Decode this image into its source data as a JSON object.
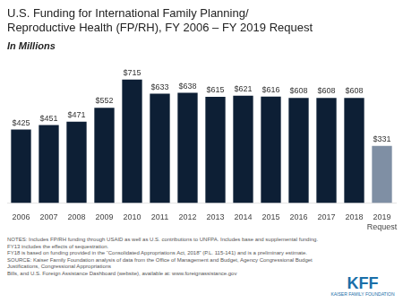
{
  "chart_data": {
    "type": "bar",
    "title": "U.S. Funding for International Family Planning/\nReproductive Health (FP/RH), FY 2006 – FY 2019 Request",
    "subtitle": "In Millions",
    "categories": [
      "2006",
      "2007",
      "2008",
      "2009",
      "2010",
      "2011",
      "2012",
      "2013",
      "2014",
      "2015",
      "2016",
      "2017",
      "2018",
      "2019\nRequest"
    ],
    "values": [
      425,
      451,
      471,
      552,
      715,
      633,
      638,
      615,
      621,
      616,
      608,
      608,
      608,
      331
    ],
    "value_labels": [
      "$425",
      "$451",
      "$471",
      "$552",
      "$715",
      "$633",
      "$638",
      "$615",
      "$621",
      "$616",
      "$608",
      "$608",
      "$608",
      "$331"
    ],
    "colors": [
      "#0d1f35",
      "#0d1f35",
      "#0d1f35",
      "#0d1f35",
      "#0d1f35",
      "#0d1f35",
      "#0d1f35",
      "#0d1f35",
      "#0d1f35",
      "#0d1f35",
      "#0d1f35",
      "#0d1f35",
      "#0d1f35",
      "#7f8fa4"
    ],
    "ylim": [
      0,
      800
    ],
    "grid": false,
    "data_labels": true,
    "tick_labels": "x",
    "notes": [
      "NOTES: Includes FP/RH funding through USAID as well as U.S. contributions to UNFPA. Includes base and supplemental funding. FY13 includes the effects of sequestration.",
      "FY18 is based on funding provided in the “Consolidated Appropriations Act, 2018” (P.L. 115-141) and is a preliminary estimate.",
      "SOURCE: Kaiser Family Foundation analysis of data from the Office of Management and Budget, Agency Congressional Budget Justifications, Congressional Appropriations",
      "Bills, and U.S. Foreign Assistance Dashboard (website), available at: www.foreignassistance.gov"
    ],
    "annotations": [
      "KFF",
      "KAISER FAMILY FOUNDATION"
    ]
  }
}
